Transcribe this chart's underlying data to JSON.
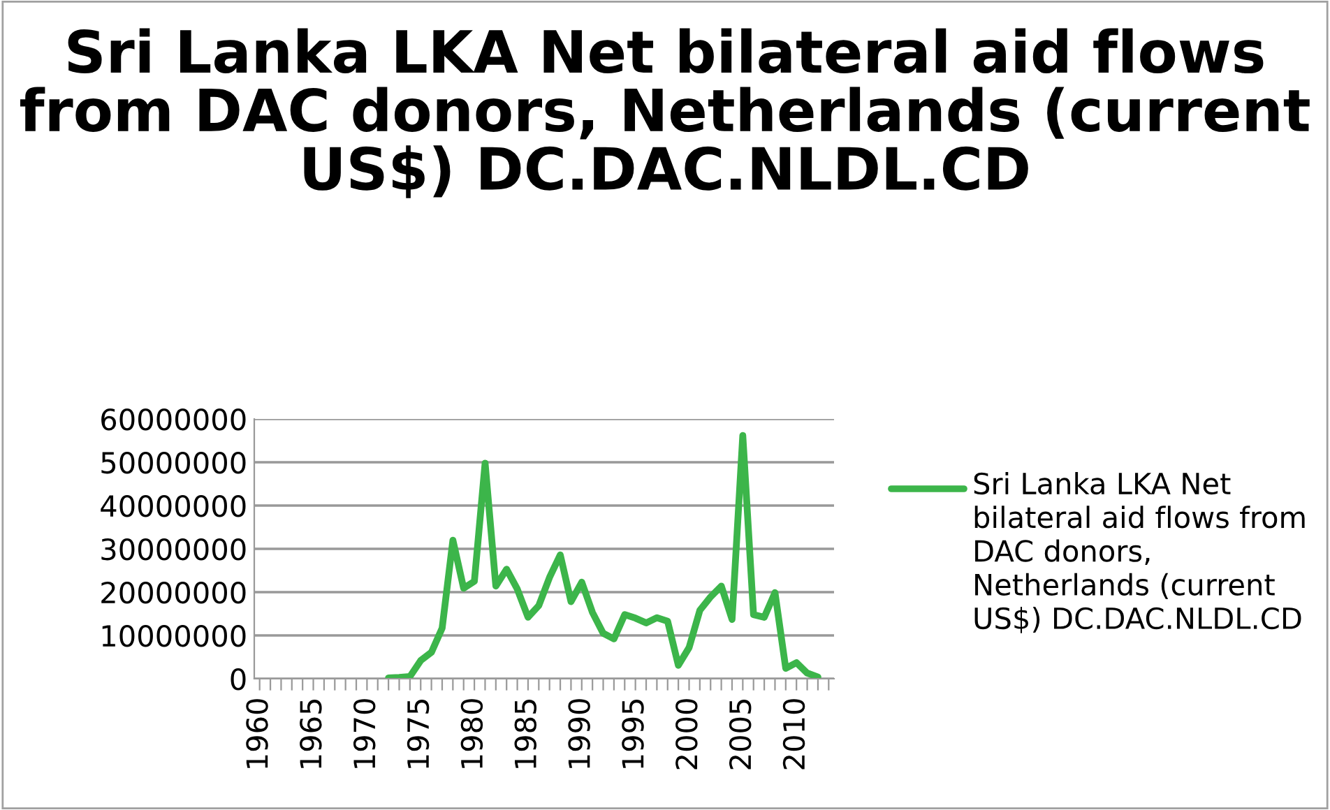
{
  "chart_data": {
    "type": "line",
    "title": "Sri Lanka LKA Net bilateral aid flows from DAC donors, Netherlands (current US$) DC.DAC.NLDL.CD",
    "categories": [
      "1960",
      null,
      null,
      null,
      null,
      "1965",
      null,
      null,
      null,
      null,
      "1970",
      null,
      null,
      null,
      null,
      "1975",
      null,
      null,
      null,
      null,
      "1980",
      null,
      null,
      null,
      null,
      "1985",
      null,
      null,
      null,
      null,
      "1990",
      null,
      null,
      null,
      null,
      "1995",
      null,
      null,
      null,
      null,
      "2000",
      null,
      null,
      null,
      null,
      "2005",
      null,
      null,
      null,
      null,
      "2010",
      null,
      null,
      null
    ],
    "series": [
      {
        "name": "Sri Lanka LKA Net bilateral aid flows from DAC donors, Netherlands (current US$) DC.DAC.NLDL.CD",
        "color": "#3cb54a",
        "values": [
          null,
          null,
          null,
          null,
          null,
          null,
          null,
          null,
          null,
          null,
          null,
          null,
          200000,
          300000,
          500000,
          4200000,
          6100000,
          11700000,
          32000000,
          20900000,
          22500000,
          49800000,
          21400000,
          25300000,
          20700000,
          14200000,
          16900000,
          23400000,
          28600000,
          17800000,
          22300000,
          15300000,
          10500000,
          9200000,
          14800000,
          14000000,
          12900000,
          14100000,
          13300000,
          3100000,
          7200000,
          15800000,
          18900000,
          21400000,
          13700000,
          56200000,
          14800000,
          14200000,
          19900000,
          2400000,
          3700000,
          1300000,
          400000,
          null
        ]
      }
    ],
    "ylim": [
      0,
      60000000
    ],
    "yticks": [
      0,
      10000000,
      20000000,
      30000000,
      40000000,
      50000000,
      60000000
    ],
    "grid": "y",
    "legend": "right",
    "marker": "none",
    "line_style": "solid"
  }
}
